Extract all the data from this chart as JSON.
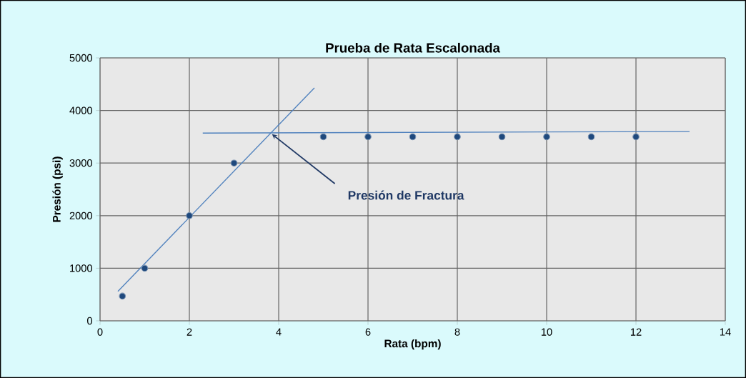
{
  "chart_data": {
    "type": "scatter",
    "title": "Prueba de Rata Escalonada",
    "xlabel": "Rata (bpm)",
    "ylabel": "Presión (psi)",
    "xlim": [
      0,
      14
    ],
    "ylim": [
      0,
      5000
    ],
    "xticks": [
      0,
      2,
      4,
      6,
      8,
      10,
      12,
      14
    ],
    "yticks": [
      0,
      1000,
      2000,
      3000,
      4000,
      5000
    ],
    "grid": true,
    "series": [
      {
        "marker": "circle",
        "color": "#1f497d",
        "x": [
          0.5,
          1,
          2,
          3,
          5,
          6,
          7,
          8,
          9,
          10,
          11,
          12
        ],
        "values": [
          470,
          1000,
          2000,
          3000,
          3500,
          3500,
          3500,
          3500,
          3500,
          3500,
          3500,
          3500
        ]
      },
      {
        "type": "line",
        "marker": "none",
        "color": "#4f81bd",
        "x": [
          0.4,
          4.8
        ],
        "values": [
          560,
          4430
        ]
      },
      {
        "type": "line",
        "marker": "none",
        "color": "#4f81bd",
        "x": [
          2.3,
          13.2
        ],
        "values": [
          3570,
          3600
        ]
      }
    ],
    "annotations": [
      {
        "text": "Presión de Fractura",
        "x": 3.85,
        "y": 3550
      }
    ]
  }
}
